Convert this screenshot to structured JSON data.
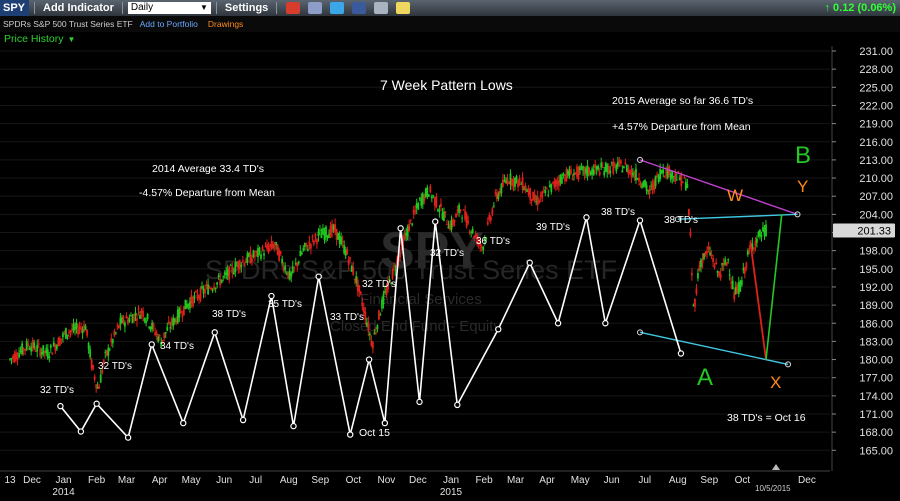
{
  "toolbar": {
    "symbol": "SPY",
    "add_indicator": "Add Indicator",
    "interval": "Daily",
    "settings": "Settings",
    "change": "0.12 (0.06%)"
  },
  "subbar": {
    "name": "SPDRs S&P 500 Trust Series ETF",
    "add_to_portfolio": "Add to Portfolio",
    "drawings": "Drawings"
  },
  "panel": {
    "label": "Price History"
  },
  "watermark": {
    "symbol": "SPY",
    "name": "SPDRs S&P 500 Trust Series ETF",
    "sector": "Financial Services",
    "industry": "Closed End Fund - Equity"
  },
  "colors": {
    "up": "#1fc81f",
    "down": "#e0201a",
    "pattern": "#ffffff",
    "upper_channel": "#c040d0",
    "channel": "#3fc8e0",
    "wave_b": "#24c824",
    "orange": "#ff8a1a",
    "price_tag": "#d8d8d8"
  },
  "chart_data": {
    "type": "line",
    "title": "7 Week Pattern Lows",
    "annotations": {
      "avg_2014": "2014 Average 33.4 TD's",
      "dep_2014": "-4.57% Departure from Mean",
      "avg_2015": "2015 Average so far 36.6 TD's",
      "dep_2015": "+4.57% Departure from Mean",
      "oct16": "38 TD's = Oct 16",
      "oct15": "Oct 15",
      "date_marker": "10/5/2015"
    },
    "wave_labels": {
      "a": "A",
      "b": "B",
      "w": "W",
      "x": "X",
      "y": "Y"
    },
    "cycle_labels": [
      "32 TD's",
      "32 TD's",
      "34 TD's",
      "38 TD's",
      "35 TD's",
      "33 TD's",
      "32 TD's",
      "32 TD's",
      "36 TD's",
      "39 TD's",
      "38 TD's",
      "38 TD's"
    ],
    "y_ticks": [
      231,
      228,
      225,
      222,
      219,
      216,
      213,
      210,
      207,
      204,
      201,
      198,
      195,
      192,
      189,
      186,
      183,
      180,
      177,
      174,
      171,
      168,
      165
    ],
    "ylim": [
      163.8,
      232.0
    ],
    "last_price": "201.33",
    "last_price_value": 201.33,
    "x_labels": [
      {
        "label": "13",
        "t": 0.0
      },
      {
        "label": "Dec",
        "t": 0.7
      },
      {
        "label": "Jan",
        "t": 1.7
      },
      {
        "label": "2014",
        "t": 1.7
      },
      {
        "label": "Feb",
        "t": 2.75
      },
      {
        "label": "Mar",
        "t": 3.7
      },
      {
        "label": "Apr",
        "t": 4.75
      },
      {
        "label": "May",
        "t": 5.75
      },
      {
        "label": "Jun",
        "t": 6.8
      },
      {
        "label": "Jul",
        "t": 7.8
      },
      {
        "label": "Aug",
        "t": 8.85
      },
      {
        "label": "Sep",
        "t": 9.85
      },
      {
        "label": "Oct",
        "t": 10.9
      },
      {
        "label": "Nov",
        "t": 11.95
      },
      {
        "label": "Dec",
        "t": 12.95
      },
      {
        "label": "Jan",
        "t": 14.0
      },
      {
        "label": "2015",
        "t": 14.0
      },
      {
        "label": "Feb",
        "t": 15.05
      },
      {
        "label": "Mar",
        "t": 16.05
      },
      {
        "label": "Apr",
        "t": 17.05
      },
      {
        "label": "May",
        "t": 18.1
      },
      {
        "label": "Jun",
        "t": 19.1
      },
      {
        "label": "Jul",
        "t": 20.15
      },
      {
        "label": "Aug",
        "t": 21.2
      },
      {
        "label": "Sep",
        "t": 22.2
      },
      {
        "label": "Oct",
        "t": 23.25
      },
      {
        "label": "Dec",
        "t": 25.3
      }
    ],
    "price_path": [
      [
        0.0,
        180.0
      ],
      [
        0.6,
        182.5
      ],
      [
        1.2,
        181.0
      ],
      [
        1.8,
        184.5
      ],
      [
        2.4,
        185.5
      ],
      [
        2.6,
        179.0
      ],
      [
        2.8,
        175.0
      ],
      [
        3.0,
        180.0
      ],
      [
        3.5,
        186.0
      ],
      [
        4.2,
        188.0
      ],
      [
        4.8,
        183.0
      ],
      [
        5.0,
        185.0
      ],
      [
        5.6,
        189.0
      ],
      [
        6.2,
        191.5
      ],
      [
        6.8,
        193.5
      ],
      [
        7.3,
        196.0
      ],
      [
        7.9,
        197.5
      ],
      [
        8.4,
        199.0
      ],
      [
        8.9,
        193.5
      ],
      [
        9.3,
        198.0
      ],
      [
        9.8,
        200.5
      ],
      [
        10.3,
        201.5
      ],
      [
        10.7,
        197.5
      ],
      [
        11.0,
        193.0
      ],
      [
        11.3,
        187.0
      ],
      [
        11.5,
        182.5
      ],
      [
        11.8,
        189.0
      ],
      [
        12.2,
        195.0
      ],
      [
        12.6,
        201.0
      ],
      [
        13.0,
        206.0
      ],
      [
        13.3,
        208.0
      ],
      [
        13.7,
        204.5
      ],
      [
        14.0,
        202.0
      ],
      [
        14.3,
        205.0
      ],
      [
        14.7,
        201.0
      ],
      [
        15.0,
        198.5
      ],
      [
        15.4,
        206.5
      ],
      [
        15.8,
        210.0
      ],
      [
        16.3,
        209.0
      ],
      [
        16.7,
        206.0
      ],
      [
        17.1,
        208.0
      ],
      [
        17.6,
        210.5
      ],
      [
        18.2,
        211.0
      ],
      [
        18.8,
        211.5
      ],
      [
        19.5,
        212.0
      ],
      [
        20.0,
        210.0
      ],
      [
        20.3,
        207.5
      ],
      [
        20.7,
        211.5
      ],
      [
        21.1,
        210.5
      ],
      [
        21.5,
        209.0
      ],
      [
        21.6,
        200.0
      ],
      [
        21.7,
        188.0
      ],
      [
        21.9,
        196.0
      ],
      [
        22.2,
        198.0
      ],
      [
        22.5,
        194.0
      ],
      [
        22.8,
        196.5
      ],
      [
        23.0,
        190.5
      ],
      [
        23.2,
        192.5
      ],
      [
        23.5,
        198.5
      ],
      [
        23.8,
        200.5
      ],
      [
        24.0,
        201.3
      ]
    ],
    "pattern_line": [
      [
        1.6,
        172.3
      ],
      [
        2.25,
        168.1
      ],
      [
        2.75,
        172.7
      ],
      [
        3.75,
        167.1
      ],
      [
        4.5,
        182.5
      ],
      [
        5.5,
        169.5
      ],
      [
        6.5,
        184.5
      ],
      [
        7.4,
        170.0
      ],
      [
        8.3,
        190.5
      ],
      [
        9.0,
        169.0
      ],
      [
        9.8,
        193.7
      ],
      [
        10.8,
        167.6
      ],
      [
        11.4,
        180.0
      ],
      [
        11.9,
        169.5
      ],
      [
        12.4,
        201.7
      ],
      [
        13.0,
        173.0
      ],
      [
        13.5,
        202.8
      ],
      [
        14.2,
        172.5
      ],
      [
        15.5,
        185.0
      ],
      [
        16.5,
        196.0
      ],
      [
        17.4,
        186.0
      ],
      [
        18.3,
        203.5
      ],
      [
        18.9,
        186.0
      ],
      [
        20.0,
        203.0
      ],
      [
        21.3,
        181.0
      ]
    ],
    "channel_top": [
      [
        20.0,
        213.0
      ],
      [
        25.0,
        204.0
      ]
    ],
    "channel_mid": [
      [
        21.2,
        203.2
      ],
      [
        25.0,
        204.0
      ]
    ],
    "channel_low": [
      [
        20.0,
        184.5
      ],
      [
        24.7,
        179.2
      ]
    ],
    "wave_path": [
      [
        23.5,
        199.5
      ],
      [
        24.0,
        180.0
      ],
      [
        24.5,
        204.0
      ]
    ]
  }
}
